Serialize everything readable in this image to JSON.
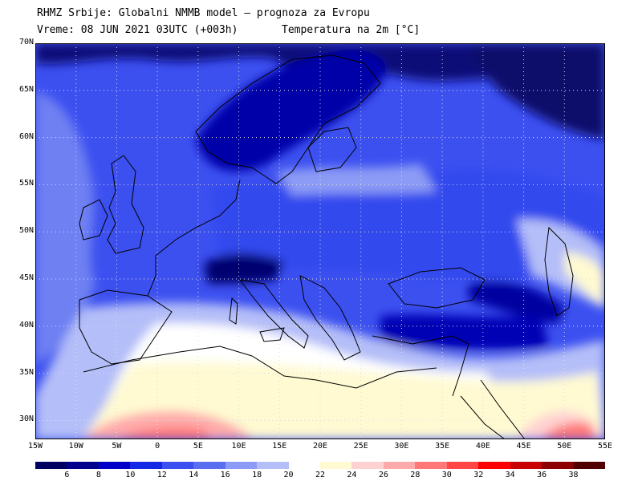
{
  "header": {
    "line1": "RHMZ Srbije: Globalni NMMB model — prognoza za Evropu",
    "line2_time": "Vreme: 08 JUN 2021 03UTC (+003h)",
    "line2_param": "Temperatura na 2m [°C]"
  },
  "map": {
    "lat_labels": [
      "70N",
      "65N",
      "60N",
      "55N",
      "50N",
      "45N",
      "40N",
      "35N",
      "30N"
    ],
    "lat_values": [
      70,
      65,
      60,
      55,
      50,
      45,
      40,
      35,
      30
    ],
    "lon_labels": [
      "15W",
      "10W",
      "5W",
      "0",
      "5E",
      "10E",
      "15E",
      "20E",
      "25E",
      "30E",
      "35E",
      "40E",
      "45E",
      "50E",
      "55E"
    ],
    "lon_values": [
      -15,
      -10,
      -5,
      0,
      5,
      10,
      15,
      20,
      25,
      30,
      35,
      40,
      45,
      50,
      55
    ],
    "extent": {
      "lon_min": -15,
      "lon_max": 55,
      "lat_min": 28,
      "lat_max": 70
    },
    "grid": true
  },
  "legend": {
    "labels": [
      "6",
      "8",
      "10",
      "12",
      "14",
      "16",
      "18",
      "20",
      "22",
      "24",
      "26",
      "28",
      "30",
      "32",
      "34",
      "36",
      "38"
    ],
    "colors": [
      "#000060",
      "#00008c",
      "#0000c8",
      "#1428e6",
      "#3c50f0",
      "#5a6ef0",
      "#8c9bf5",
      "#b4bef8",
      "#ffffff",
      "#fffad2",
      "#ffd2d2",
      "#ffaaaa",
      "#ff7878",
      "#ff4646",
      "#ff0000",
      "#c80000",
      "#8c0000",
      "#500000"
    ]
  }
}
